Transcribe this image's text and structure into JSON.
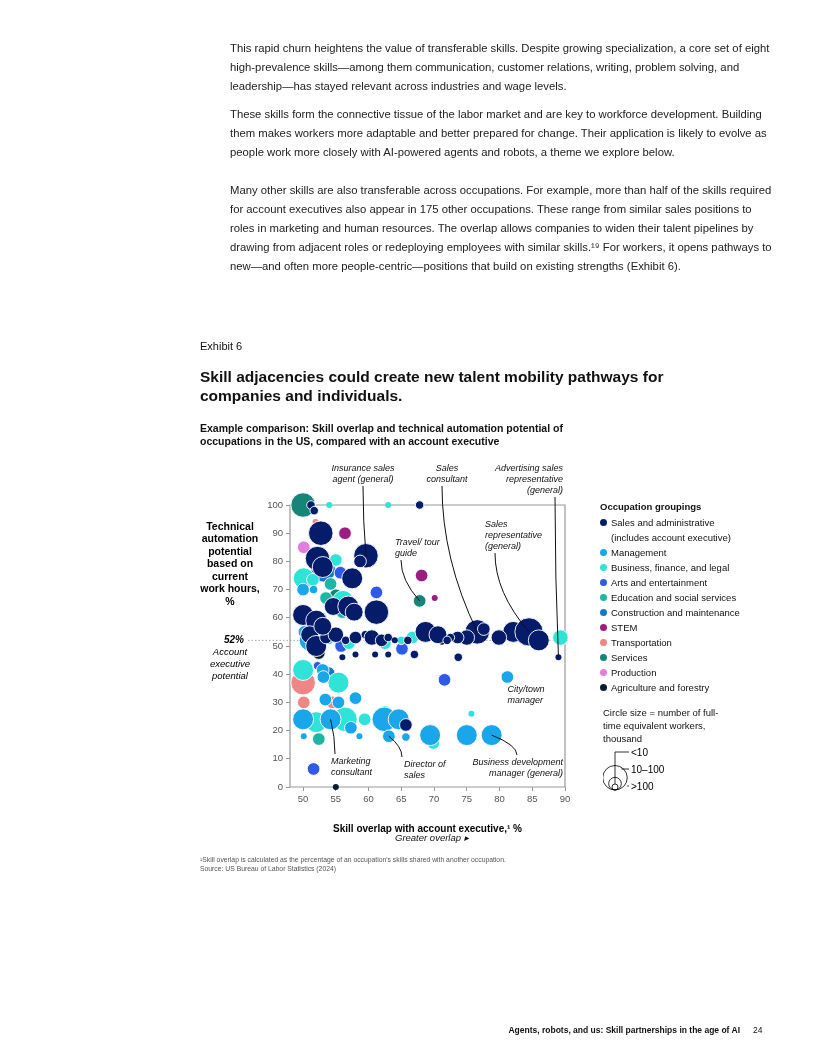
{
  "chart_data": {
    "type": "bubble",
    "title": "Skill adjacencies could create new talent mobility pathways for companies and individuals.",
    "subtitle": "Example comparison: Skill overlap and technical automation potential of occupations in the US, compared with an account executive",
    "xlabel": "Skill overlap with account executive,¹ %",
    "ylabel": "Technical automation potential based on current work hours, %",
    "legend_title": "Occupation groupings",
    "legend": "right",
    "xlim": [
      48,
      90
    ],
    "ylim": [
      0,
      100
    ],
    "xticks": [
      50,
      55,
      60,
      65,
      70,
      75,
      80,
      85,
      90
    ],
    "yticks": [
      0,
      10,
      20,
      30,
      40,
      50,
      60,
      70,
      80,
      90,
      100
    ],
    "size_legend": [
      {
        "value": 9,
        "label": "<10"
      },
      {
        "value": 40,
        "label": "10–100"
      },
      {
        "value": 150,
        "label": ">100"
      }
    ],
    "ref_lines": [
      {
        "axis": "y",
        "value": 52,
        "label": "52% Account executive potential",
        "color": "#aaaaaa",
        "line_style": "dotted"
      }
    ],
    "annotations": [
      {
        "text": "Insurance sales agent (general)",
        "x": 59.6,
        "y": 82
      },
      {
        "text": "Sales consultant",
        "x": 76.6,
        "y": 55
      },
      {
        "text": "Advertising sales representative (general)",
        "x": 89,
        "y": 46
      },
      {
        "text": "Travel/ tour guide",
        "x": 67.8,
        "y": 66
      },
      {
        "text": "Sales representative (general)",
        "x": 84.5,
        "y": 55
      },
      {
        "text": "City/town manager",
        "x": 81.2,
        "y": 39
      },
      {
        "text": "Marketing consultant",
        "x": 54.2,
        "y": 24
      },
      {
        "text": "Director of sales",
        "x": 63.1,
        "y": 18
      },
      {
        "text": "Business development manager (general)",
        "x": 78.8,
        "y": 18.4
      },
      "This rapid churn heightens the value of transferable skills. Despite growing specialization, a core set of eight high-prevalence skills—among them communication, customer relations, writing, problem solving, and leadership—has stayed relevant across industries and wage levels.",
      "These skills form the connective tissue of the labor market and are key to workforce development. Building them makes workers more adaptable and better prepared for change. Their application is likely to evolve as people work more closely with AI-powered agents and robots, a theme we explore below.",
      "Many other skills are also transferable across occupations. For example, more than half of the skills required for account executives also appear in 175 other occupations. These range from similar sales positions to roles in marketing and human resources. The overlap allows companies to widen their talent pipelines by drawing from adjacent roles or redeploying employees with similar skills.¹⁹ For workers, it opens pathways to new—and often more people-centric—positions that build on existing strengths (Exhibit 6).",
      "Exhibit 6",
      "Greater overlap ▸",
      "Circle size = number of full-time equivalent workers, thousand",
      "¹Skill overlap is calculated as the percentage of an occupation's skills shared with another occupation.",
      "Source: US Bureau of Labor Statistics (2024)",
      "Agents, robots, and us: Skill partnerships in the age of AI",
      "24"
    ],
    "series": [
      {
        "name": "Sales and administrative (includes account executive)",
        "color": "#051c6b",
        "x": [
          51.2,
          51.7,
          67.8,
          52.7,
          52.2,
          53,
          59.6,
          58.7,
          57.5,
          50,
          52,
          54.6,
          56.9,
          61.2,
          57.8,
          76.6,
          77.6,
          82.1,
          84.5,
          86,
          79.9,
          68.7,
          70.6,
          75,
          73.6,
          72.5,
          89,
          73.7,
          65.7,
          51,
          52,
          53.5,
          55,
          56.5,
          58,
          59.5,
          60.5,
          62,
          63,
          64,
          61,
          58,
          56,
          63,
          67,
          66,
          53,
          72
        ],
        "values": [
          100,
          98,
          100,
          90,
          81,
          78,
          82,
          80,
          74,
          61,
          59,
          64,
          64,
          62,
          62,
          55,
          56,
          55,
          55,
          52,
          53,
          55,
          54,
          53,
          53,
          53,
          46,
          46,
          22,
          54,
          50,
          53,
          54,
          52,
          53,
          54,
          53,
          52,
          53,
          52,
          47,
          47,
          46,
          47,
          47,
          52,
          57,
          52
        ],
        "sizes": [
          18,
          18,
          18,
          150,
          150,
          110,
          150,
          40,
          110,
          110,
          110,
          80,
          110,
          150,
          80,
          150,
          40,
          110,
          200,
          110,
          60,
          110,
          80,
          60,
          40,
          18,
          9,
          18,
          40,
          80,
          110,
          40,
          60,
          18,
          40,
          18,
          60,
          40,
          18,
          9,
          9,
          9,
          9,
          9,
          18,
          18,
          80,
          18
        ]
      },
      {
        "name": "Management",
        "color": "#1aa6ea",
        "x": [
          50,
          54.2,
          62.4,
          64.6,
          69.4,
          78.8,
          75,
          81.2,
          63.1,
          65.7,
          53,
          53.1,
          53.4,
          55.4,
          58,
          57.3,
          50.1,
          58.6,
          50,
          51.6,
          51,
          50.2
        ],
        "values": [
          24,
          24,
          24,
          24,
          18.4,
          18.4,
          18.4,
          39,
          18,
          17.7,
          41.5,
          39,
          31,
          30,
          31.5,
          21,
          18,
          18,
          70,
          70,
          52,
          55
        ],
        "sizes": [
          110,
          110,
          150,
          110,
          110,
          110,
          110,
          40,
          40,
          18,
          40,
          40,
          40,
          40,
          40,
          40,
          9,
          9,
          40,
          18,
          110,
          40
        ]
      },
      {
        "name": "Business, finance, and legal",
        "color": "#30e3d8",
        "x": [
          50,
          55.4,
          50.1,
          51.5,
          55,
          56.1,
          52.7,
          52,
          56.4,
          59.4,
          75.7,
          54,
          63,
          66.7,
          89.3,
          69.9,
          54,
          57,
          60,
          62.5,
          65,
          62.5
        ],
        "values": [
          41.5,
          37,
          74,
          73.5,
          80.5,
          66,
          60,
          23,
          24,
          24,
          26,
          100,
          100,
          53,
          53,
          15.6,
          52,
          51,
          52,
          51,
          52,
          26.6
        ],
        "sizes": [
          110,
          110,
          110,
          40,
          40,
          110,
          40,
          110,
          150,
          40,
          9,
          9,
          9,
          40,
          60,
          40,
          18,
          40,
          18,
          40,
          18,
          40
        ]
      },
      {
        "name": "Arts and entertainment",
        "color": "#2f5ae8",
        "x": [
          51.6,
          55.7,
          61.2,
          65.1,
          71.6,
          55.8,
          52.2
        ],
        "values": [
          6.4,
          76,
          69,
          49,
          38,
          50,
          43
        ],
        "sizes": [
          40,
          40,
          40,
          40,
          40,
          40,
          18
        ]
      },
      {
        "name": "Education and social services",
        "color": "#1fb5a3",
        "x": [
          52.4,
          54.2,
          56,
          53.5
        ],
        "values": [
          17,
          72,
          62,
          67
        ],
        "sizes": [
          40,
          40,
          40,
          40
        ]
      },
      {
        "name": "Construction and maintenance",
        "color": "#1877c9",
        "x": [
          53.1,
          53.9
        ],
        "values": [
          77,
          40.4
        ],
        "sizes": [
          150,
          40
        ]
      },
      {
        "name": "STEM",
        "color": "#9a1d7f",
        "x": [
          56.4,
          68.1,
          70.1
        ],
        "values": [
          90,
          75,
          67
        ],
        "sizes": [
          40,
          40,
          9
        ]
      },
      {
        "name": "Transportation",
        "color": "#f08585",
        "x": [
          50,
          50.1,
          54.5,
          51.9
        ],
        "values": [
          37,
          30,
          30,
          94
        ],
        "sizes": [
          150,
          40,
          40,
          9
        ]
      },
      {
        "name": "Services",
        "color": "#148577",
        "x": [
          50,
          67.8,
          55
        ],
        "values": [
          100,
          66,
          68
        ],
        "sizes": [
          150,
          40,
          40
        ]
      },
      {
        "name": "Production",
        "color": "#e37ee0",
        "x": [
          50.1
        ],
        "values": [
          85
        ],
        "sizes": [
          40
        ]
      },
      {
        "name": "Agriculture and forestry",
        "color": "#0a1a33",
        "x": [
          55,
          52.4,
          71.2
        ],
        "values": [
          0,
          47.5,
          51.5
        ],
        "sizes": [
          9,
          40,
          9
        ]
      }
    ]
  }
}
